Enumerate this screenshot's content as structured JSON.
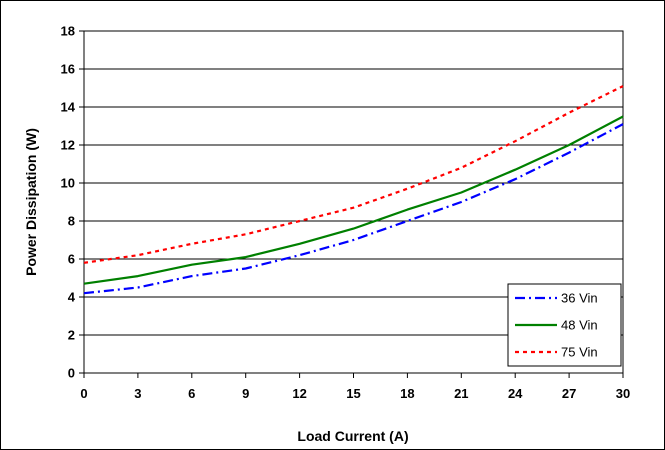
{
  "chart_data": {
    "type": "line",
    "xlabel": "Load Current (A)",
    "ylabel": "Power Dissipation (W)",
    "xlim": [
      0,
      30
    ],
    "ylim": [
      0,
      18
    ],
    "xticks": [
      "0",
      "3",
      "6",
      "9",
      "12",
      "15",
      "18",
      "21",
      "24",
      "27",
      "30"
    ],
    "yticks": [
      "0",
      "2",
      "4",
      "6",
      "8",
      "10",
      "12",
      "14",
      "16",
      "18"
    ],
    "grid": "horizontal",
    "legend_position": "bottom-right",
    "x": [
      0,
      3,
      6,
      9,
      12,
      15,
      18,
      21,
      24,
      27,
      30
    ],
    "series": [
      {
        "name": "36 Vin",
        "color": "#0000ff",
        "dash": "dash-dot",
        "values": [
          4.2,
          4.5,
          5.1,
          5.5,
          6.2,
          7.0,
          8.0,
          9.0,
          10.2,
          11.6,
          13.1
        ]
      },
      {
        "name": "48 Vin",
        "color": "#008000",
        "dash": "solid",
        "values": [
          4.7,
          5.1,
          5.7,
          6.1,
          6.8,
          7.6,
          8.6,
          9.5,
          10.7,
          12.0,
          13.5
        ]
      },
      {
        "name": "75 Vin",
        "color": "#ff0000",
        "dash": "dotted",
        "values": [
          5.8,
          6.2,
          6.8,
          7.3,
          8.0,
          8.7,
          9.7,
          10.8,
          12.2,
          13.7,
          15.1
        ]
      }
    ]
  }
}
